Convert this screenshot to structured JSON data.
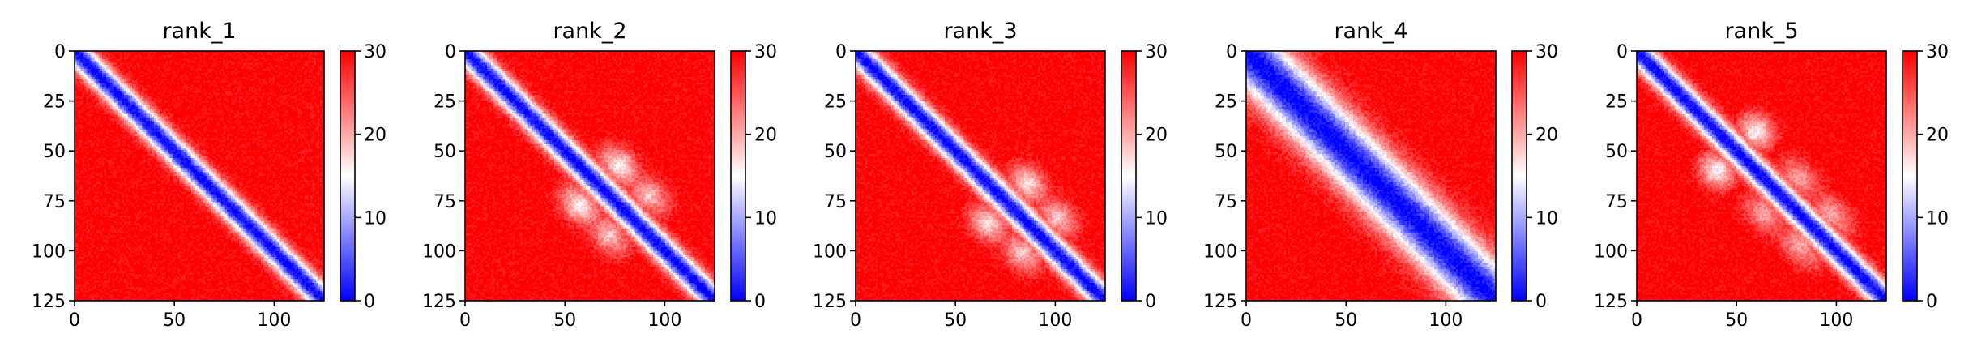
{
  "chart_data": [
    {
      "type": "heatmap",
      "title": "rank_1",
      "matrix_size": 126,
      "xlim": [
        0,
        125
      ],
      "ylim": [
        125,
        0
      ],
      "xticks": [
        0,
        50,
        100
      ],
      "yticks": [
        0,
        25,
        50,
        75,
        100,
        125
      ],
      "colorbar": {
        "range": [
          0,
          30
        ],
        "ticks": [
          0,
          10,
          20,
          30
        ],
        "colormap": [
          "#0000ff",
          "#ffffff",
          "#ff0000"
        ]
      },
      "diagonal_width": 6,
      "off_diagonal_light_regions": []
    },
    {
      "type": "heatmap",
      "title": "rank_2",
      "matrix_size": 126,
      "xlim": [
        0,
        125
      ],
      "ylim": [
        125,
        0
      ],
      "xticks": [
        0,
        50,
        100
      ],
      "yticks": [
        0,
        25,
        50,
        75,
        100,
        125
      ],
      "colorbar": {
        "range": [
          0,
          30
        ],
        "ticks": [
          0,
          10,
          20,
          30
        ],
        "colormap": [
          "#0000ff",
          "#ffffff",
          "#ff0000"
        ]
      },
      "diagonal_width": 6,
      "off_diagonal_light_regions": [
        [
          55,
          80,
          15,
          20
        ],
        [
          70,
          95,
          12,
          20
        ]
      ]
    },
    {
      "type": "heatmap",
      "title": "rank_3",
      "matrix_size": 126,
      "xlim": [
        0,
        125
      ],
      "ylim": [
        125,
        0
      ],
      "xticks": [
        0,
        50,
        100
      ],
      "yticks": [
        0,
        25,
        50,
        75,
        100,
        125
      ],
      "colorbar": {
        "range": [
          0,
          30
        ],
        "ticks": [
          0,
          10,
          20,
          30
        ],
        "colormap": [
          "#0000ff",
          "#ffffff",
          "#ff0000"
        ]
      },
      "diagonal_width": 6,
      "off_diagonal_light_regions": [
        [
          80,
          105,
          12,
          18
        ],
        [
          65,
          88,
          14,
          20
        ]
      ]
    },
    {
      "type": "heatmap",
      "title": "rank_4",
      "matrix_size": 126,
      "xlim": [
        0,
        125
      ],
      "ylim": [
        125,
        0
      ],
      "xticks": [
        0,
        50,
        100
      ],
      "yticks": [
        0,
        25,
        50,
        75,
        100,
        125
      ],
      "colorbar": {
        "range": [
          0,
          30
        ],
        "ticks": [
          0,
          10,
          20,
          30
        ],
        "colormap": [
          "#0000ff",
          "#ffffff",
          "#ff0000"
        ]
      },
      "diagonal_width": 14,
      "off_diagonal_light_regions": [
        [
          45,
          62,
          6,
          14
        ],
        [
          70,
          95,
          8,
          16
        ]
      ]
    },
    {
      "type": "heatmap",
      "title": "rank_5",
      "matrix_size": 126,
      "xlim": [
        0,
        125
      ],
      "ylim": [
        125,
        0
      ],
      "xticks": [
        0,
        50,
        100
      ],
      "yticks": [
        0,
        25,
        50,
        75,
        100,
        125
      ],
      "colorbar": {
        "range": [
          0,
          30
        ],
        "ticks": [
          0,
          10,
          20,
          30
        ],
        "colormap": [
          "#0000ff",
          "#ffffff",
          "#ff0000"
        ]
      },
      "diagonal_width": 6,
      "off_diagonal_light_regions": [
        [
          60,
          85,
          10,
          18
        ],
        [
          75,
          105,
          10,
          16
        ],
        [
          40,
          60,
          16,
          20
        ]
      ]
    }
  ]
}
